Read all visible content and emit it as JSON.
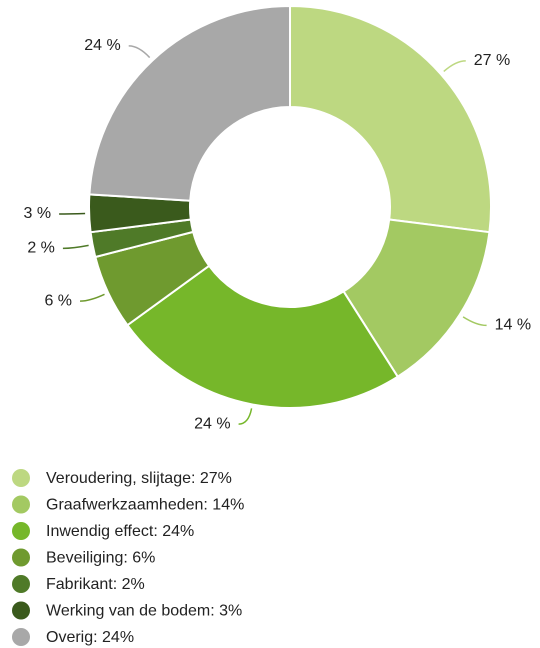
{
  "chart_data": {
    "type": "donut",
    "categories": [
      "Veroudering, slijtage: 27%",
      "Graafwerkzaamheden: 14%",
      "Inwendig effect: 24%",
      "Beveiliging: 6%",
      "Fabrikant: 2%",
      "Werking van de bodem: 3%",
      "Overig: 24%"
    ],
    "values": [
      27,
      14,
      24,
      6,
      2,
      3,
      24
    ],
    "value_labels": [
      "27 %",
      "14 %",
      "24 %",
      "6 %",
      "2 %",
      "3 %",
      "24 %"
    ],
    "colors": [
      "#bdd881",
      "#a3c962",
      "#76b72a",
      "#6f9a2f",
      "#4f7a28",
      "#3a5a1c",
      "#a8a8a8"
    ]
  }
}
